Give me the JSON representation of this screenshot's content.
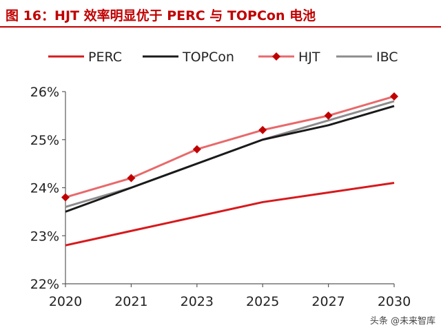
{
  "header": {
    "title": "图 16：HJT 效率明显优于 PERC 与 TOPCon 电池"
  },
  "watermark": "头条 @未来智库",
  "chart_data": {
    "type": "line",
    "categories": [
      "2020",
      "2021",
      "2023",
      "2025",
      "2027",
      "2030"
    ],
    "ylim": [
      22,
      26
    ],
    "yticks": [
      22,
      23,
      24,
      25,
      26
    ],
    "ytick_labels": [
      "22%",
      "23%",
      "24%",
      "25%",
      "26%"
    ],
    "grid": false,
    "legend_position": "top",
    "series": [
      {
        "name": "PERC",
        "color": "#d7191c",
        "marker": "none",
        "values": [
          22.8,
          23.1,
          23.4,
          23.7,
          23.9,
          24.1
        ]
      },
      {
        "name": "TOPCon",
        "color": "#1a1a1a",
        "marker": "none",
        "values": [
          23.5,
          24.0,
          24.5,
          25.0,
          25.3,
          25.7
        ]
      },
      {
        "name": "HJT",
        "color": "#e8696b",
        "marker": "diamond",
        "marker_color": "#c00000",
        "values": [
          23.8,
          24.2,
          24.8,
          25.2,
          25.5,
          25.9
        ]
      },
      {
        "name": "IBC",
        "color": "#8c8c8c",
        "marker": "none",
        "values": [
          23.6,
          24.0,
          24.5,
          25.0,
          25.4,
          25.8
        ]
      }
    ]
  }
}
